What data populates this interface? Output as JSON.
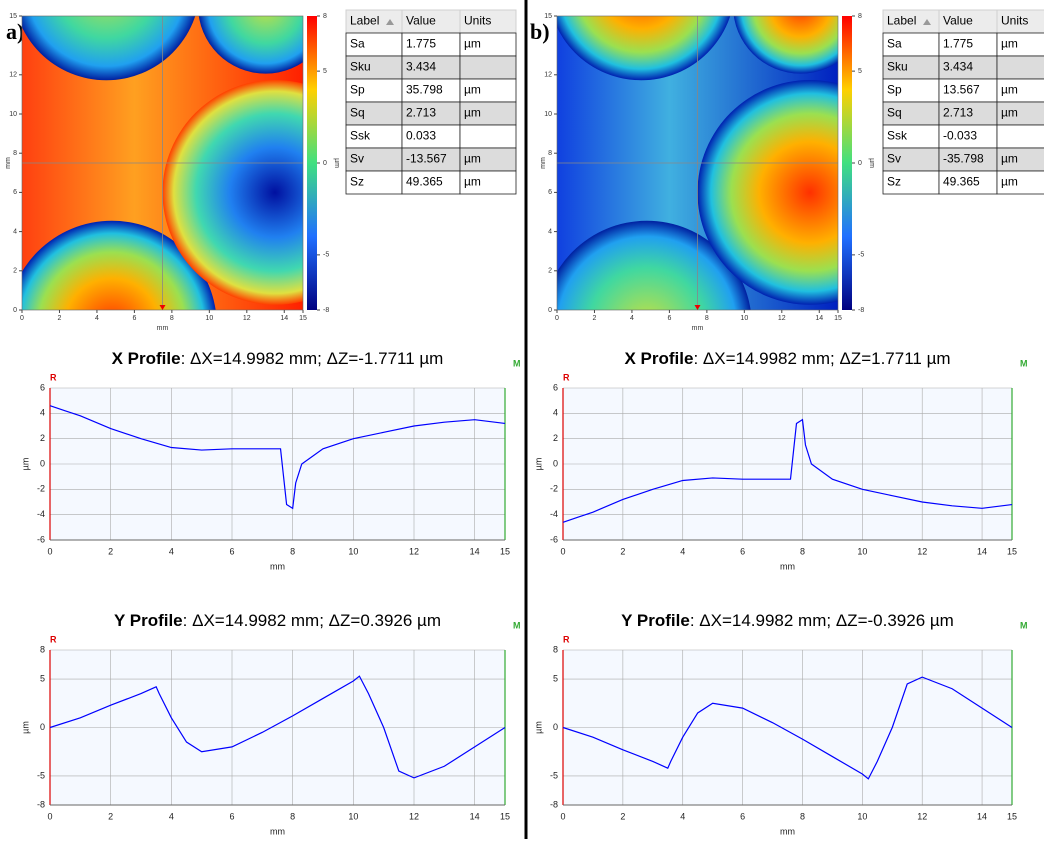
{
  "panel_labels": [
    "a)",
    "b)"
  ],
  "tables": [
    {
      "header": [
        "Label",
        "Value",
        "Units"
      ],
      "rows": [
        [
          "Sa",
          1.775,
          "µm"
        ],
        [
          "Sku",
          3.434,
          null
        ],
        [
          "Sp",
          35.798,
          "µm"
        ],
        [
          "Sq",
          2.713,
          "µm"
        ],
        [
          "Ssk",
          0.033,
          null
        ],
        [
          "Sv",
          -13.567,
          "µm"
        ],
        [
          "Sz",
          49.365,
          "µm"
        ]
      ]
    },
    {
      "header": [
        "Label",
        "Value",
        "Units"
      ],
      "rows": [
        [
          "Sa",
          1.775,
          "µm"
        ],
        [
          "Sku",
          3.434,
          null
        ],
        [
          "Sp",
          13.567,
          "µm"
        ],
        [
          "Sq",
          2.713,
          "µm"
        ],
        [
          "Ssk",
          -0.033,
          null
        ],
        [
          "Sv",
          -35.798,
          "µm"
        ],
        [
          "Sz",
          49.365,
          "µm"
        ]
      ]
    }
  ],
  "chart_data": [
    {
      "type": "heatmap",
      "xlabel": "mm",
      "ylabel": "mm",
      "xlim": [
        0,
        15
      ],
      "ylim": [
        0,
        15
      ],
      "xticks": [
        0,
        2,
        4,
        6,
        8,
        10,
        12,
        14,
        15
      ],
      "yticks": [
        0,
        2,
        4,
        6,
        8,
        10,
        12,
        15
      ],
      "colorbar": {
        "label": "µm",
        "lim": [
          -8,
          8
        ],
        "ticks": [
          8,
          5,
          0,
          -5,
          -8
        ]
      }
    },
    {
      "type": "line",
      "title": "X Profile",
      "title_detail": ": ΔX=14.9982 mm; ΔZ=-1.7711 µm",
      "corner_labels": [
        "R",
        "M"
      ],
      "xlabel": "mm",
      "ylabel": "µm",
      "color": "#0000ff",
      "grid": true,
      "xlim": [
        0,
        15
      ],
      "ylim": [
        -6,
        6
      ],
      "xticks": [
        0,
        2,
        4,
        6,
        8,
        10,
        12,
        14,
        15
      ],
      "yticks": [
        -6,
        -4,
        -2,
        0,
        2,
        4,
        6
      ],
      "x": [
        0,
        0.5,
        1,
        2,
        3,
        4,
        5,
        6,
        7,
        7.6,
        7.7,
        7.8,
        8,
        8.1,
        8.3,
        9,
        10,
        11,
        12,
        13,
        14,
        15
      ],
      "values": [
        4.6,
        4.2,
        3.8,
        2.8,
        2,
        1.3,
        1.1,
        1.2,
        1.2,
        1.2,
        -1,
        -3.2,
        -3.5,
        -1.5,
        0,
        1.2,
        2,
        2.5,
        3,
        3.3,
        3.5,
        3.2
      ]
    },
    {
      "type": "line",
      "title": "Y Profile",
      "title_detail": ": ΔX=14.9982 mm; ΔZ=0.3926 µm",
      "corner_labels": [
        "R",
        "M"
      ],
      "xlabel": "mm",
      "ylabel": "µm",
      "color": "#0000ff",
      "grid": true,
      "xlim": [
        0,
        15
      ],
      "ylim": [
        -8,
        8
      ],
      "xticks": [
        0,
        2,
        4,
        6,
        8,
        10,
        12,
        14,
        15
      ],
      "yticks": [
        -8,
        -5,
        0,
        5,
        8
      ],
      "x": [
        0,
        1,
        2,
        3,
        3.5,
        3.6,
        4,
        4.5,
        5,
        6,
        7,
        8,
        9,
        10,
        10.2,
        10.5,
        11,
        11.5,
        12,
        13,
        14,
        15
      ],
      "values": [
        0,
        1,
        2.3,
        3.5,
        4.2,
        3.5,
        1,
        -1.5,
        -2.5,
        -2,
        -0.5,
        1.2,
        3,
        4.8,
        5.3,
        3.5,
        0,
        -4.5,
        -5.2,
        -4,
        -2,
        0
      ]
    },
    {
      "type": "heatmap",
      "xlabel": "mm",
      "ylabel": "mm",
      "xlim": [
        0,
        15
      ],
      "ylim": [
        0,
        15
      ],
      "xticks": [
        0,
        2,
        4,
        6,
        8,
        10,
        12,
        14,
        15
      ],
      "yticks": [
        0,
        2,
        4,
        6,
        8,
        10,
        12,
        15
      ],
      "colorbar": {
        "label": "µm",
        "lim": [
          -8,
          8
        ],
        "ticks": [
          8,
          5,
          0,
          -5,
          -8
        ]
      }
    },
    {
      "type": "line",
      "title": "X Profile",
      "title_detail": ": ΔX=14.9982 mm; ΔZ=1.7711 µm",
      "corner_labels": [
        "R",
        "M"
      ],
      "xlabel": "mm",
      "ylabel": "µm",
      "color": "#0000ff",
      "grid": true,
      "xlim": [
        0,
        15
      ],
      "ylim": [
        -6,
        6
      ],
      "xticks": [
        0,
        2,
        4,
        6,
        8,
        10,
        12,
        14,
        15
      ],
      "yticks": [
        -6,
        -4,
        -2,
        0,
        2,
        4,
        6
      ],
      "x": [
        0,
        0.5,
        1,
        2,
        3,
        4,
        5,
        6,
        7,
        7.6,
        7.7,
        7.8,
        8,
        8.1,
        8.3,
        9,
        10,
        11,
        12,
        13,
        14,
        15
      ],
      "values": [
        -4.6,
        -4.2,
        -3.8,
        -2.8,
        -2,
        -1.3,
        -1.1,
        -1.2,
        -1.2,
        -1.2,
        1,
        3.2,
        3.5,
        1.5,
        0,
        -1.2,
        -2,
        -2.5,
        -3,
        -3.3,
        -3.5,
        -3.2
      ]
    },
    {
      "type": "line",
      "title": "Y Profile",
      "title_detail": ": ΔX=14.9982 mm; ΔZ=-0.3926 µm",
      "corner_labels": [
        "R",
        "M"
      ],
      "xlabel": "mm",
      "ylabel": "µm",
      "color": "#0000ff",
      "grid": true,
      "xlim": [
        0,
        15
      ],
      "ylim": [
        -8,
        8
      ],
      "xticks": [
        0,
        2,
        4,
        6,
        8,
        10,
        12,
        14,
        15
      ],
      "yticks": [
        -8,
        -5,
        0,
        5,
        8
      ],
      "x": [
        0,
        1,
        2,
        3,
        3.5,
        3.6,
        4,
        4.5,
        5,
        6,
        7,
        8,
        9,
        10,
        10.2,
        10.5,
        11,
        11.5,
        12,
        13,
        14,
        15
      ],
      "values": [
        0,
        -1,
        -2.3,
        -3.5,
        -4.2,
        -3.5,
        -1,
        1.5,
        2.5,
        2,
        0.5,
        -1.2,
        -3,
        -4.8,
        -5.3,
        -3.5,
        0,
        4.5,
        5.2,
        4,
        2,
        0
      ]
    }
  ]
}
